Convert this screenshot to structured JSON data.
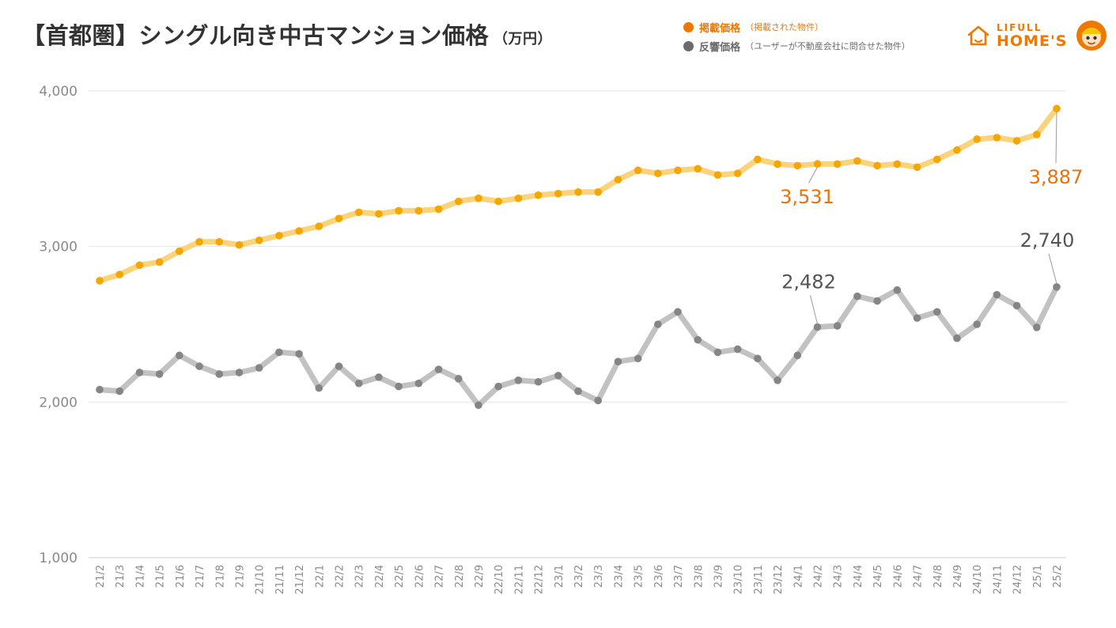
{
  "header": {
    "title": "【首都圏】シングル向き中古マンション価格",
    "unit": "（万円）"
  },
  "legend": {
    "items": [
      {
        "label": "掲載価格",
        "note": "（掲載された物件）",
        "color": "#ee7800"
      },
      {
        "label": "反響価格",
        "note": "（ユーザーが不動産会社に問合せた物件）",
        "color": "#6b6b6b"
      }
    ]
  },
  "logo": {
    "brand_top": "LIFULL",
    "brand_bottom": "HOME'S"
  },
  "chart_data": {
    "type": "line",
    "title": "【首都圏】シングル向き中古マンション価格",
    "ylabel": "（万円）",
    "ylim": [
      1000,
      4000
    ],
    "yticks": [
      1000,
      2000,
      3000,
      4000
    ],
    "ytick_labels": [
      "1,000",
      "2,000",
      "3,000",
      "4,000"
    ],
    "grid": true,
    "legend_position": "top-right",
    "categories": [
      "21/2",
      "21/3",
      "21/4",
      "21/5",
      "21/6",
      "21/7",
      "21/8",
      "21/9",
      "21/10",
      "21/11",
      "21/12",
      "22/1",
      "22/2",
      "22/3",
      "22/4",
      "22/5",
      "22/6",
      "22/7",
      "22/8",
      "22/9",
      "22/10",
      "22/11",
      "22/12",
      "23/1",
      "23/2",
      "23/3",
      "23/4",
      "23/5",
      "23/6",
      "23/7",
      "23/8",
      "23/9",
      "23/10",
      "23/11",
      "23/12",
      "24/1",
      "24/2",
      "24/3",
      "24/4",
      "24/5",
      "24/6",
      "24/7",
      "24/8",
      "24/9",
      "24/10",
      "24/11",
      "24/12",
      "25/1",
      "25/2"
    ],
    "series": [
      {
        "name": "掲載価格",
        "point_color": "#f5a600",
        "line_color": "#fad37a",
        "label_color": "#e8730a",
        "values": [
          2780,
          2820,
          2880,
          2900,
          2970,
          3030,
          3030,
          3010,
          3040,
          3070,
          3100,
          3130,
          3180,
          3220,
          3210,
          3230,
          3230,
          3240,
          3290,
          3310,
          3290,
          3310,
          3330,
          3340,
          3350,
          3350,
          3430,
          3490,
          3470,
          3490,
          3500,
          3460,
          3470,
          3560,
          3530,
          3520,
          3531,
          3530,
          3550,
          3520,
          3530,
          3510,
          3560,
          3620,
          3690,
          3700,
          3680,
          3720,
          3887
        ]
      },
      {
        "name": "反響価格",
        "point_color": "#858585",
        "line_color": "#c2c2c2",
        "label_color": "#555555",
        "values": [
          2080,
          2070,
          2190,
          2180,
          2300,
          2230,
          2180,
          2190,
          2220,
          2320,
          2310,
          2090,
          2230,
          2120,
          2160,
          2100,
          2120,
          2210,
          2150,
          1980,
          2100,
          2140,
          2130,
          2170,
          2070,
          2010,
          2260,
          2280,
          2500,
          2580,
          2400,
          2320,
          2340,
          2280,
          2140,
          2300,
          2482,
          2490,
          2680,
          2650,
          2720,
          2540,
          2580,
          2410,
          2500,
          2690,
          2620,
          2480,
          2740
        ]
      }
    ],
    "annotations": [
      {
        "series": 0,
        "index": 36,
        "text": "3,531"
      },
      {
        "series": 0,
        "index": 48,
        "text": "3,887"
      },
      {
        "series": 1,
        "index": 36,
        "text": "2,482"
      },
      {
        "series": 1,
        "index": 48,
        "text": "2,740"
      }
    ]
  }
}
